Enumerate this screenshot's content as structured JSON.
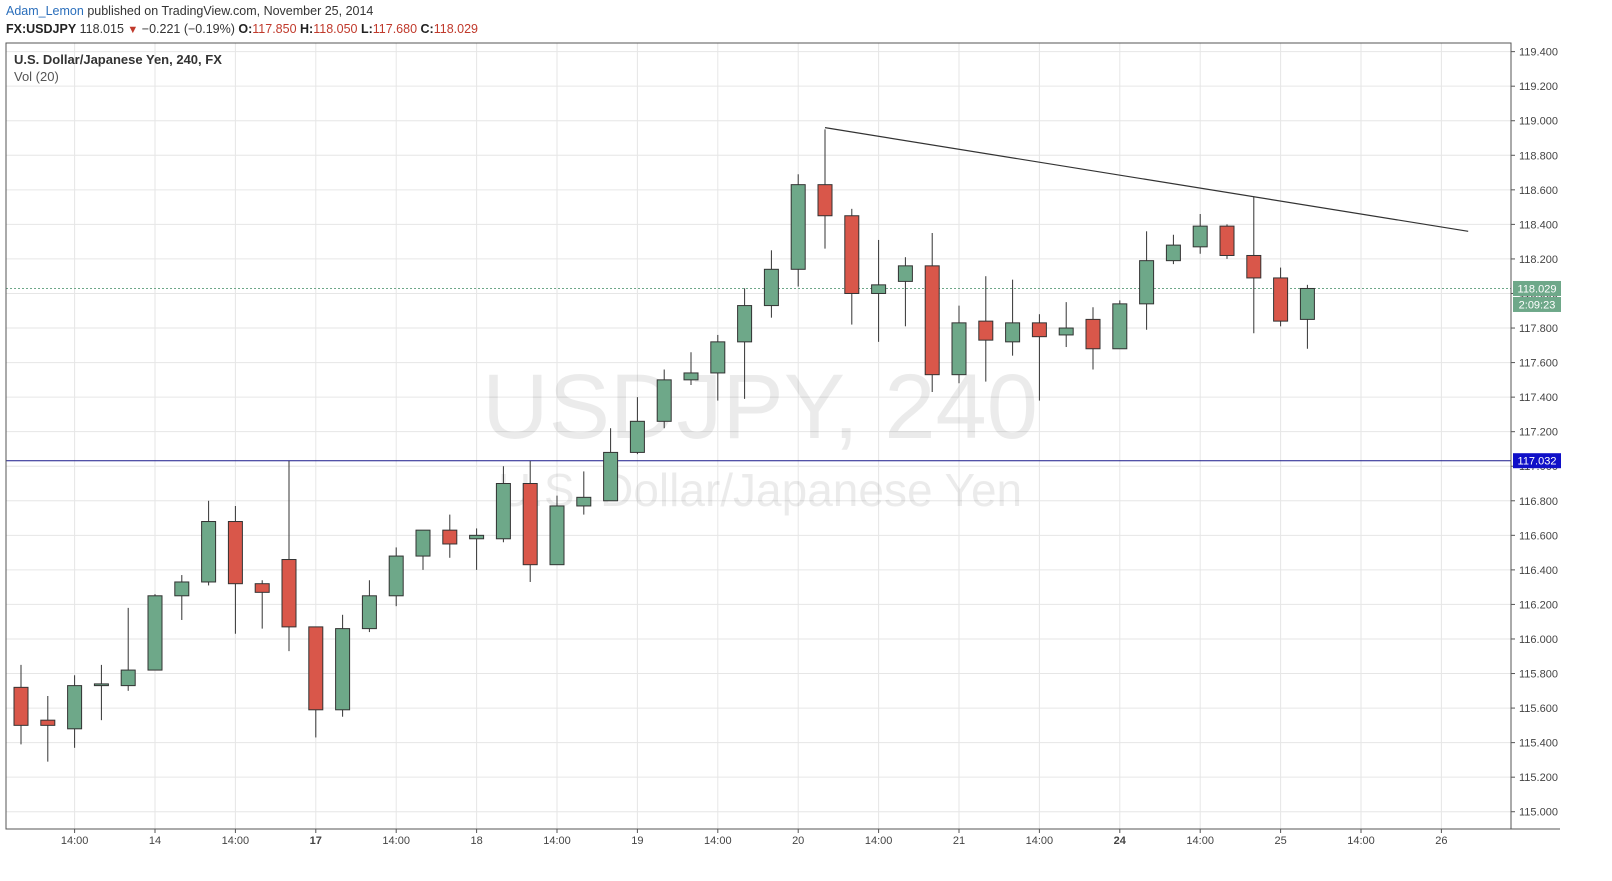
{
  "header": {
    "author": "Adam_Lemon",
    "published_text": "published on TradingView.com, November 25, 2014",
    "symbol": "FX:USDJPY",
    "last": "118.015",
    "change": "−0.221 (−0.19%)",
    "o_label": "O:",
    "o_val": "117.850",
    "h_label": "H:",
    "h_val": "118.050",
    "l_label": "L:",
    "l_val": "117.680",
    "c_label": "C:",
    "c_val": "118.029"
  },
  "legend": {
    "title": "U.S. Dollar/Japanese Yen, 240, FX",
    "indicator": "Vol (20)"
  },
  "watermark": {
    "line1": "USDJPY, 240",
    "line2": "U.S. Dollar/Japanese Yen"
  },
  "colors": {
    "up": "#6ea889",
    "down": "#d9574a",
    "border": "#333333",
    "grid": "#e6e6e6",
    "price_line": "#6ea889",
    "hline": "#1a1a8c",
    "trendline": "#333333"
  },
  "chart_data": {
    "type": "candlestick",
    "y_axis": {
      "min": 114.9,
      "max": 119.45,
      "ticks": [
        "115.000",
        "115.200",
        "115.400",
        "115.600",
        "115.800",
        "116.000",
        "116.200",
        "116.400",
        "116.600",
        "116.800",
        "117.000",
        "117.200",
        "117.400",
        "117.600",
        "117.800",
        "118.000",
        "118.200",
        "118.400",
        "118.600",
        "118.800",
        "119.000",
        "119.200",
        "119.400"
      ]
    },
    "x_axis": {
      "ticks": [
        {
          "i": 2,
          "label": "14:00",
          "bold": false
        },
        {
          "i": 5,
          "label": "14",
          "bold": false
        },
        {
          "i": 8,
          "label": "14:00",
          "bold": false
        },
        {
          "i": 11,
          "label": "17",
          "bold": true
        },
        {
          "i": 14,
          "label": "14:00",
          "bold": false
        },
        {
          "i": 17,
          "label": "18",
          "bold": false
        },
        {
          "i": 20,
          "label": "14:00",
          "bold": false
        },
        {
          "i": 23,
          "label": "19",
          "bold": false
        },
        {
          "i": 26,
          "label": "14:00",
          "bold": false
        },
        {
          "i": 29,
          "label": "20",
          "bold": false
        },
        {
          "i": 32,
          "label": "14:00",
          "bold": false
        },
        {
          "i": 35,
          "label": "21",
          "bold": false
        },
        {
          "i": 38,
          "label": "14:00",
          "bold": false
        },
        {
          "i": 41,
          "label": "24",
          "bold": true
        },
        {
          "i": 44,
          "label": "14:00",
          "bold": false
        },
        {
          "i": 47,
          "label": "25",
          "bold": false
        },
        {
          "i": 50,
          "label": "14:00",
          "bold": false
        },
        {
          "i": 53,
          "label": "26",
          "bold": false
        }
      ]
    },
    "candles": [
      {
        "o": 115.72,
        "h": 115.85,
        "l": 115.39,
        "c": 115.5
      },
      {
        "o": 115.53,
        "h": 115.67,
        "l": 115.29,
        "c": 115.5
      },
      {
        "o": 115.48,
        "h": 115.79,
        "l": 115.37,
        "c": 115.73
      },
      {
        "o": 115.73,
        "h": 115.85,
        "l": 115.53,
        "c": 115.74
      },
      {
        "o": 115.73,
        "h": 116.18,
        "l": 115.7,
        "c": 115.82
      },
      {
        "o": 115.82,
        "h": 116.26,
        "l": 115.82,
        "c": 116.25
      },
      {
        "o": 116.25,
        "h": 116.37,
        "l": 116.11,
        "c": 116.33
      },
      {
        "o": 116.33,
        "h": 116.8,
        "l": 116.31,
        "c": 116.68
      },
      {
        "o": 116.68,
        "h": 116.77,
        "l": 116.03,
        "c": 116.32
      },
      {
        "o": 116.32,
        "h": 116.34,
        "l": 116.06,
        "c": 116.27
      },
      {
        "o": 116.46,
        "h": 117.03,
        "l": 115.93,
        "c": 116.07
      },
      {
        "o": 116.07,
        "h": 116.07,
        "l": 115.43,
        "c": 115.59
      },
      {
        "o": 115.59,
        "h": 116.14,
        "l": 115.55,
        "c": 116.06
      },
      {
        "o": 116.06,
        "h": 116.34,
        "l": 116.04,
        "c": 116.25
      },
      {
        "o": 116.25,
        "h": 116.53,
        "l": 116.19,
        "c": 116.48
      },
      {
        "o": 116.48,
        "h": 116.63,
        "l": 116.4,
        "c": 116.63
      },
      {
        "o": 116.63,
        "h": 116.72,
        "l": 116.47,
        "c": 116.55
      },
      {
        "o": 116.58,
        "h": 116.64,
        "l": 116.4,
        "c": 116.6
      },
      {
        "o": 116.58,
        "h": 117.0,
        "l": 116.56,
        "c": 116.9
      },
      {
        "o": 116.9,
        "h": 117.03,
        "l": 116.33,
        "c": 116.43
      },
      {
        "o": 116.43,
        "h": 116.83,
        "l": 116.43,
        "c": 116.77
      },
      {
        "o": 116.77,
        "h": 116.97,
        "l": 116.72,
        "c": 116.82
      },
      {
        "o": 116.8,
        "h": 117.22,
        "l": 116.8,
        "c": 117.08
      },
      {
        "o": 117.08,
        "h": 117.4,
        "l": 117.07,
        "c": 117.26
      },
      {
        "o": 117.26,
        "h": 117.56,
        "l": 117.22,
        "c": 117.5
      },
      {
        "o": 117.5,
        "h": 117.66,
        "l": 117.47,
        "c": 117.54
      },
      {
        "o": 117.54,
        "h": 117.76,
        "l": 117.38,
        "c": 117.72
      },
      {
        "o": 117.72,
        "h": 118.03,
        "l": 117.39,
        "c": 117.93
      },
      {
        "o": 117.93,
        "h": 118.25,
        "l": 117.86,
        "c": 118.14
      },
      {
        "o": 118.14,
        "h": 118.69,
        "l": 118.04,
        "c": 118.63
      },
      {
        "o": 118.63,
        "h": 118.95,
        "l": 118.26,
        "c": 118.45
      },
      {
        "o": 118.45,
        "h": 118.49,
        "l": 117.82,
        "c": 118.0
      },
      {
        "o": 118.0,
        "h": 118.31,
        "l": 117.72,
        "c": 118.05
      },
      {
        "o": 118.07,
        "h": 118.21,
        "l": 117.81,
        "c": 118.16
      },
      {
        "o": 118.16,
        "h": 118.35,
        "l": 117.43,
        "c": 117.53
      },
      {
        "o": 117.53,
        "h": 117.93,
        "l": 117.48,
        "c": 117.83
      },
      {
        "o": 117.84,
        "h": 118.1,
        "l": 117.49,
        "c": 117.73
      },
      {
        "o": 117.72,
        "h": 118.08,
        "l": 117.64,
        "c": 117.83
      },
      {
        "o": 117.83,
        "h": 117.88,
        "l": 117.38,
        "c": 117.75
      },
      {
        "o": 117.76,
        "h": 117.95,
        "l": 117.69,
        "c": 117.8
      },
      {
        "o": 117.85,
        "h": 117.92,
        "l": 117.56,
        "c": 117.68
      },
      {
        "o": 117.68,
        "h": 117.96,
        "l": 117.68,
        "c": 117.94
      },
      {
        "o": 117.94,
        "h": 118.36,
        "l": 117.79,
        "c": 118.19
      },
      {
        "o": 118.19,
        "h": 118.34,
        "l": 118.17,
        "c": 118.28
      },
      {
        "o": 118.27,
        "h": 118.46,
        "l": 118.23,
        "c": 118.39
      },
      {
        "o": 118.39,
        "h": 118.4,
        "l": 118.2,
        "c": 118.22
      },
      {
        "o": 118.22,
        "h": 118.56,
        "l": 117.77,
        "c": 118.09
      },
      {
        "o": 118.09,
        "h": 118.15,
        "l": 117.81,
        "c": 117.84
      },
      {
        "o": 117.85,
        "h": 118.05,
        "l": 117.68,
        "c": 118.029
      }
    ],
    "current_price": {
      "value": 118.029,
      "label": "118.029",
      "countdown": "2:09:23"
    },
    "horizontal_line": {
      "value": 117.032,
      "label": "117.032"
    },
    "trendline": {
      "i1": 30,
      "v1": 118.96,
      "i2": 54,
      "v2": 118.36
    },
    "grid": true
  }
}
